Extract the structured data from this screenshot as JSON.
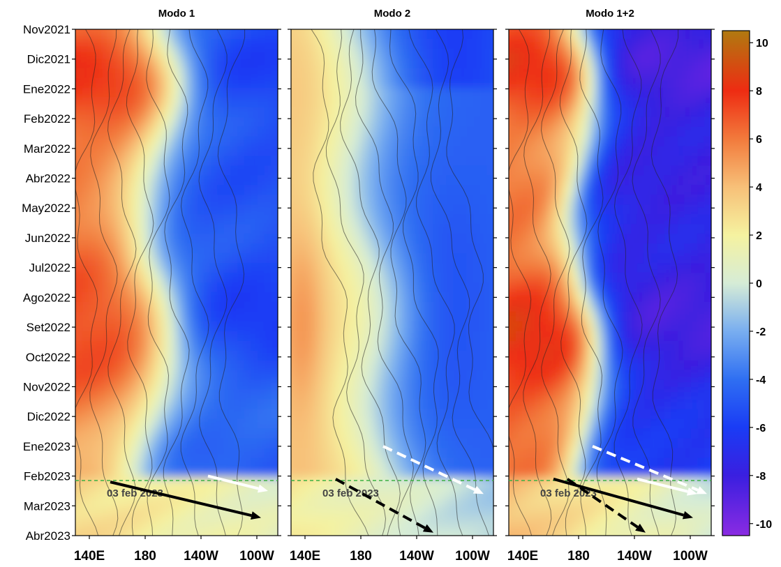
{
  "chart_data": {
    "type": "heatmap",
    "panels": [
      {
        "id": "m1",
        "title": "Modo 1"
      },
      {
        "id": "m2",
        "title": "Modo 2"
      },
      {
        "id": "m12",
        "title": "Modo 1+2"
      }
    ],
    "y_ticks": [
      "Nov2021",
      "Dic2021",
      "Ene2022",
      "Feb2022",
      "Mar2022",
      "Abr2022",
      "May2022",
      "Jun2022",
      "Jul2022",
      "Ago2022",
      "Set2022",
      "Oct2022",
      "Nov2022",
      "Dic2022",
      "Ene2023",
      "Feb2023",
      "Mar2023",
      "Abr2023"
    ],
    "x_ticks": [
      "140E",
      "180",
      "140W",
      "100W"
    ],
    "x_tick_lon": [
      140,
      180,
      220,
      260
    ],
    "lon_range": [
      130,
      275
    ],
    "colorbar": {
      "ticks": [
        10,
        8,
        6,
        4,
        2,
        0,
        -2,
        -4,
        -6,
        -8,
        -10
      ],
      "range": [
        -10.5,
        10.5
      ],
      "stops": [
        {
          "v": -10.5,
          "c": "#8a2be2"
        },
        {
          "v": -8,
          "c": "#3a1fe0"
        },
        {
          "v": -6,
          "c": "#1a3cf5"
        },
        {
          "v": -4,
          "c": "#2f6ff2"
        },
        {
          "v": -2,
          "c": "#79aef0"
        },
        {
          "v": 0,
          "c": "#d6ecd6"
        },
        {
          "v": 2,
          "c": "#f5f2a0"
        },
        {
          "v": 4,
          "c": "#f7c078"
        },
        {
          "v": 6,
          "c": "#f27a3c"
        },
        {
          "v": 8,
          "c": "#ee2c12"
        },
        {
          "v": 10.5,
          "c": "#b07a10"
        }
      ]
    },
    "marker": {
      "date_index": 15.15,
      "label": "03 feb 2023",
      "color": "#3cb043"
    },
    "arrows": [
      {
        "panel": "m1",
        "from": [
          155,
          15.2
        ],
        "to": [
          263,
          16.4
        ],
        "style": "solid",
        "color": "#000000"
      },
      {
        "panel": "m1",
        "from": [
          225,
          15.0
        ],
        "to": [
          268,
          15.5
        ],
        "style": "solid",
        "color": "#ffffff"
      },
      {
        "panel": "m2",
        "from": [
          162,
          15.1
        ],
        "to": [
          232,
          16.9
        ],
        "style": "dashed",
        "color": "#000000"
      },
      {
        "panel": "m2",
        "from": [
          196,
          14.0
        ],
        "to": [
          268,
          15.6
        ],
        "style": "dashed",
        "color": "#ffffff"
      },
      {
        "panel": "m12",
        "from": [
          162,
          15.1
        ],
        "to": [
          262,
          16.4
        ],
        "style": "solid",
        "color": "#000000"
      },
      {
        "panel": "m12",
        "from": [
          172,
          15.1
        ],
        "to": [
          228,
          16.9
        ],
        "style": "dashed",
        "color": "#000000"
      },
      {
        "panel": "m12",
        "from": [
          190,
          14.0
        ],
        "to": [
          272,
          15.6
        ],
        "style": "dashed",
        "color": "#ffffff"
      },
      {
        "panel": "m12",
        "from": [
          222,
          15.1
        ],
        "to": [
          265,
          15.6
        ],
        "style": "solid",
        "color": "#ffffff"
      }
    ]
  }
}
